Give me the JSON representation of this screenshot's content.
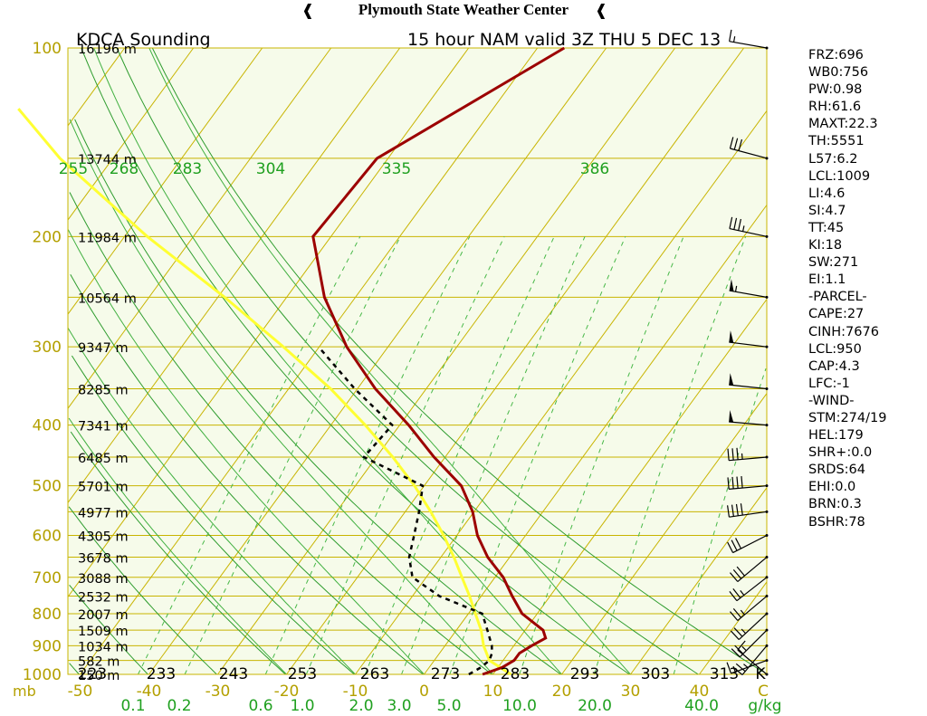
{
  "header": {
    "title": "Plymouth State Weather Center",
    "left_icon": "tornado-icon",
    "right_icon": "tornado-icon"
  },
  "chart_data": {
    "type": "line",
    "title": "KDCA Sounding",
    "subtitle": "15 hour NAM valid 3Z THU 5 DEC 13",
    "xlabel_pressure_unit": "mb",
    "ylim": [
      1000,
      100
    ],
    "pressure_levels": [
      100,
      200,
      300,
      400,
      500,
      600,
      700,
      800,
      900,
      1000
    ],
    "height_labels": [
      {
        "p": 100,
        "label": "16196 m"
      },
      {
        "p": 150,
        "label": "13744 m"
      },
      {
        "p": 200,
        "label": "11984 m"
      },
      {
        "p": 250,
        "label": "10564 m"
      },
      {
        "p": 300,
        "label": "9347 m"
      },
      {
        "p": 350,
        "label": "8285 m"
      },
      {
        "p": 400,
        "label": "7341 m"
      },
      {
        "p": 450,
        "label": "6485 m"
      },
      {
        "p": 500,
        "label": "5701 m"
      },
      {
        "p": 550,
        "label": "4977 m"
      },
      {
        "p": 600,
        "label": "4305 m"
      },
      {
        "p": 650,
        "label": "3678 m"
      },
      {
        "p": 700,
        "label": "3088 m"
      },
      {
        "p": 750,
        "label": "2532 m"
      },
      {
        "p": 800,
        "label": "2007 m"
      },
      {
        "p": 850,
        "label": "1509 m"
      },
      {
        "p": 900,
        "label": "1034 m"
      },
      {
        "p": 950,
        "label": "582 m"
      },
      {
        "p": 1000,
        "label": "150 m"
      }
    ],
    "temperature_ticks": [
      "-50",
      "-40",
      "-30",
      "-20",
      "-10",
      "0",
      "10",
      "20",
      "30",
      "40"
    ],
    "temperature_unit": "C",
    "theta_labels": [
      "223",
      "233",
      "243",
      "253",
      "263",
      "273",
      "283",
      "293",
      "303",
      "313",
      "K"
    ],
    "thetae_labels": [
      "255",
      "268",
      "283",
      "304",
      "335",
      "386"
    ],
    "mixing_ratio_labels": [
      "0.1",
      "0.2",
      "0.6",
      "1.0",
      "2.0",
      "3.0",
      "5.0",
      "10.0",
      "20.0",
      "40.0"
    ],
    "mixing_ratio_unit": "g/kg",
    "series": [],
    "temperature_profile": [
      {
        "p": 1000,
        "t": 8.5
      },
      {
        "p": 975,
        "t": 10.6
      },
      {
        "p": 950,
        "t": 11.6
      },
      {
        "p": 925,
        "t": 11.6
      },
      {
        "p": 900,
        "t": 12.6
      },
      {
        "p": 875,
        "t": 13.8
      },
      {
        "p": 850,
        "t": 12.6
      },
      {
        "p": 800,
        "t": 7.8
      },
      {
        "p": 750,
        "t": 4.5
      },
      {
        "p": 700,
        "t": 1.2
      },
      {
        "p": 650,
        "t": -3.2
      },
      {
        "p": 600,
        "t": -7.0
      },
      {
        "p": 550,
        "t": -10.2
      },
      {
        "p": 500,
        "t": -14.6
      },
      {
        "p": 450,
        "t": -21.6
      },
      {
        "p": 400,
        "t": -28.7
      },
      {
        "p": 350,
        "t": -37.4
      },
      {
        "p": 300,
        "t": -46.0
      },
      {
        "p": 250,
        "t": -54.5
      },
      {
        "p": 200,
        "t": -62.6
      },
      {
        "p": 150,
        "t": -61.6
      },
      {
        "p": 100,
        "t": -46.1
      }
    ],
    "dewpoint_profile": [
      {
        "p": 1000,
        "t": 6.5
      },
      {
        "p": 975,
        "t": 7.5
      },
      {
        "p": 950,
        "t": 8.0
      },
      {
        "p": 925,
        "t": 7.6
      },
      {
        "p": 900,
        "t": 6.8
      },
      {
        "p": 850,
        "t": 4.5
      },
      {
        "p": 800,
        "t": 2.0
      },
      {
        "p": 750,
        "t": -6.1
      },
      {
        "p": 700,
        "t": -12.0
      },
      {
        "p": 650,
        "t": -14.6
      },
      {
        "p": 600,
        "t": -16.2
      },
      {
        "p": 550,
        "t": -18.0
      },
      {
        "p": 500,
        "t": -20.2
      },
      {
        "p": 450,
        "t": -31.8
      },
      {
        "p": 400,
        "t": -31.1
      },
      {
        "p": 350,
        "t": -40.4
      },
      {
        "p": 300,
        "t": -50.1
      }
    ],
    "parcel_profile": [
      {
        "p": 1000,
        "t": 12.6
      },
      {
        "p": 950,
        "t": 8.0
      },
      {
        "p": 900,
        "t": 5.6
      },
      {
        "p": 850,
        "t": 3.6
      },
      {
        "p": 800,
        "t": 1.0
      },
      {
        "p": 750,
        "t": -1.7
      },
      {
        "p": 700,
        "t": -4.8
      },
      {
        "p": 650,
        "t": -8.1
      },
      {
        "p": 600,
        "t": -11.9
      },
      {
        "p": 550,
        "t": -16.3
      },
      {
        "p": 500,
        "t": -21.4
      },
      {
        "p": 450,
        "t": -27.6
      },
      {
        "p": 400,
        "t": -35.0
      },
      {
        "p": 350,
        "t": -43.9
      },
      {
        "p": 300,
        "t": -55.2
      },
      {
        "p": 250,
        "t": -69.0
      },
      {
        "p": 200,
        "t": -86.7
      },
      {
        "p": 150,
        "t": -107.7
      },
      {
        "p": 125,
        "t": -119.0
      }
    ],
    "wind_barbs": [
      {
        "p": 100,
        "dir": 280,
        "spd": 15
      },
      {
        "p": 150,
        "dir": 285,
        "spd": 30
      },
      {
        "p": 200,
        "dir": 282,
        "spd": 35
      },
      {
        "p": 250,
        "dir": 280,
        "spd": 55
      },
      {
        "p": 300,
        "dir": 277,
        "spd": 50
      },
      {
        "p": 350,
        "dir": 276,
        "spd": 50
      },
      {
        "p": 400,
        "dir": 275,
        "spd": 50
      },
      {
        "p": 450,
        "dir": 265,
        "spd": 35
      },
      {
        "p": 500,
        "dir": 265,
        "spd": 40
      },
      {
        "p": 550,
        "dir": 262,
        "spd": 40
      },
      {
        "p": 600,
        "dir": 243,
        "spd": 30
      },
      {
        "p": 650,
        "dir": 230,
        "spd": 30
      },
      {
        "p": 700,
        "dir": 232,
        "spd": 25
      },
      {
        "p": 750,
        "dir": 230,
        "spd": 25
      },
      {
        "p": 800,
        "dir": 227,
        "spd": 25
      },
      {
        "p": 850,
        "dir": 225,
        "spd": 25
      },
      {
        "p": 900,
        "dir": 220,
        "spd": 25
      },
      {
        "p": 950,
        "dir": 250,
        "spd": 15
      },
      {
        "p": 1000,
        "dir": 310,
        "spd": 10
      }
    ],
    "indices": [
      "FRZ:696",
      "WB0:756",
      "PW:0.98",
      "RH:61.6",
      "MAXT:22.3",
      "TH:5551",
      "L57:6.2",
      "LCL:1009",
      "LI:4.6",
      "SI:4.7",
      "TT:45",
      "KI:18",
      "SW:271",
      "EI:1.1",
      "-PARCEL-",
      "CAPE:27",
      "CINH:7676",
      "LCL:950",
      "CAP:4.3",
      "LFC:-1",
      "-WIND-",
      "STM:274/19",
      "HEL:179",
      "SHR+:0.0",
      "SRDS:64",
      "EHI:0.0",
      "BRN:0.3",
      "BSHR:78"
    ]
  },
  "colors": {
    "background": "#f6fbea",
    "isobar": "#c8b400",
    "isotherm": "#c8b400",
    "dry_adiabat": "#2e9c2e",
    "moist_adiabat": "#40b040",
    "mixing_ratio": "#48b848",
    "temperature": "#9c0000",
    "dewpoint": "#000000",
    "parcel": "#ffff33",
    "wind": "#000000",
    "label_yellow": "#b4a000",
    "label_green": "#20a020"
  }
}
